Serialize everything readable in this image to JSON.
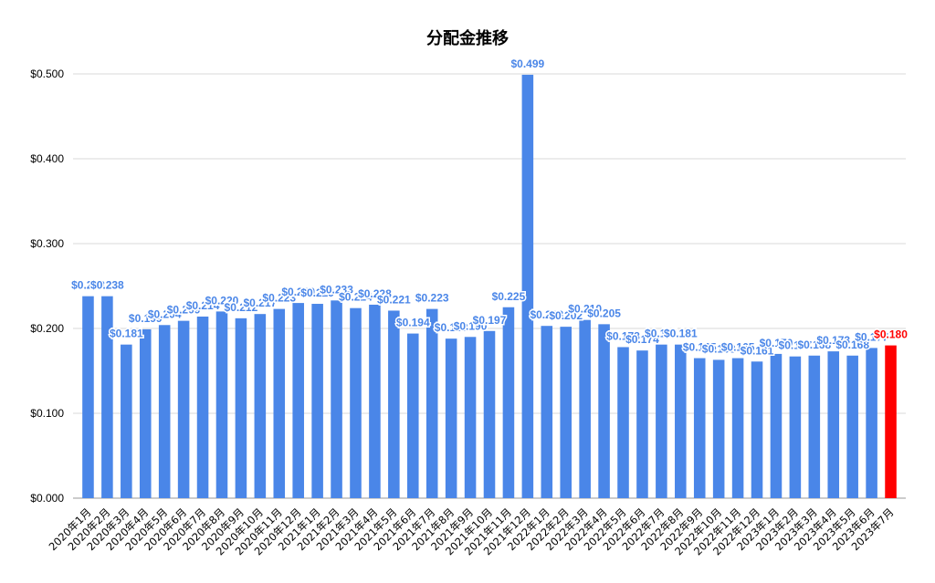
{
  "chart_data": {
    "type": "bar",
    "title": "分配金推移",
    "xlabel": "",
    "ylabel": "",
    "ylim": [
      0,
      0.5
    ],
    "yticks": [
      "$0.000",
      "$0.100",
      "$0.200",
      "$0.300",
      "$0.400",
      "$0.500"
    ],
    "yticks_values": [
      0,
      0.1,
      0.2,
      0.3,
      0.4,
      0.5
    ],
    "grid": true,
    "legend": "none",
    "categories": [
      "2020年1月",
      "2020年2月",
      "2020年3月",
      "2020年4月",
      "2020年5月",
      "2020年6月",
      "2020年7月",
      "2020年8月",
      "2020年9月",
      "2020年10月",
      "2020年11月",
      "2020年12月",
      "2021年1月",
      "2021年2月",
      "2021年3月",
      "2021年4月",
      "2021年5月",
      "2021年6月",
      "2021年7月",
      "2021年8月",
      "2021年9月",
      "2021年10月",
      "2021年11月",
      "2021年12月",
      "2022年1月",
      "2022年2月",
      "2022年3月",
      "2022年4月",
      "2022年5月",
      "2022年6月",
      "2022年7月",
      "2022年8月",
      "2022年9月",
      "2022年10月",
      "2022年11月",
      "2022年12月",
      "2023年1月",
      "2023年2月",
      "2023年3月",
      "2023年4月",
      "2023年5月",
      "2023年6月",
      "2023年7月"
    ],
    "values": [
      0.238,
      0.238,
      0.181,
      0.199,
      0.204,
      0.209,
      0.214,
      0.22,
      0.212,
      0.217,
      0.223,
      0.23,
      0.229,
      0.233,
      0.224,
      0.228,
      0.221,
      0.194,
      0.223,
      0.188,
      0.19,
      0.197,
      0.225,
      0.499,
      0.203,
      0.202,
      0.21,
      0.205,
      0.178,
      0.174,
      0.181,
      0.181,
      0.165,
      0.163,
      0.165,
      0.161,
      0.17,
      0.167,
      0.168,
      0.173,
      0.168,
      0.177,
      0.18
    ],
    "labels": [
      "$0.238",
      "$0.238",
      "$0.181",
      "$0.199",
      "$0.204",
      "$0.209",
      "$0.214",
      "$0.220",
      "$0.212",
      "$0.217",
      "$0.223",
      "$0.230",
      "$0.229",
      "$0.233",
      "$0.224",
      "$0.228",
      "$0.221",
      "$0.194",
      "$0.223",
      "$0.188",
      "$0.190",
      "$0.197",
      "$0.225",
      "$0.499",
      "$0.203",
      "$0.202",
      "$0.210",
      "$0.205",
      "$0.178",
      "$0.174",
      "$0.181",
      "$0.181",
      "$0.165",
      "$0.163",
      "$0.165",
      "$0.161",
      "$0.170",
      "$0.167",
      "$0.168",
      "$0.173",
      "$0.168",
      "$0.177",
      "$0.180"
    ],
    "colors": {
      "bar": "#4a86e8",
      "highlight": "#ff0000",
      "label": "#4a86e8",
      "highlight_label": "#ff0000",
      "grid": "#d9d9d9"
    },
    "highlight_index": 42
  }
}
